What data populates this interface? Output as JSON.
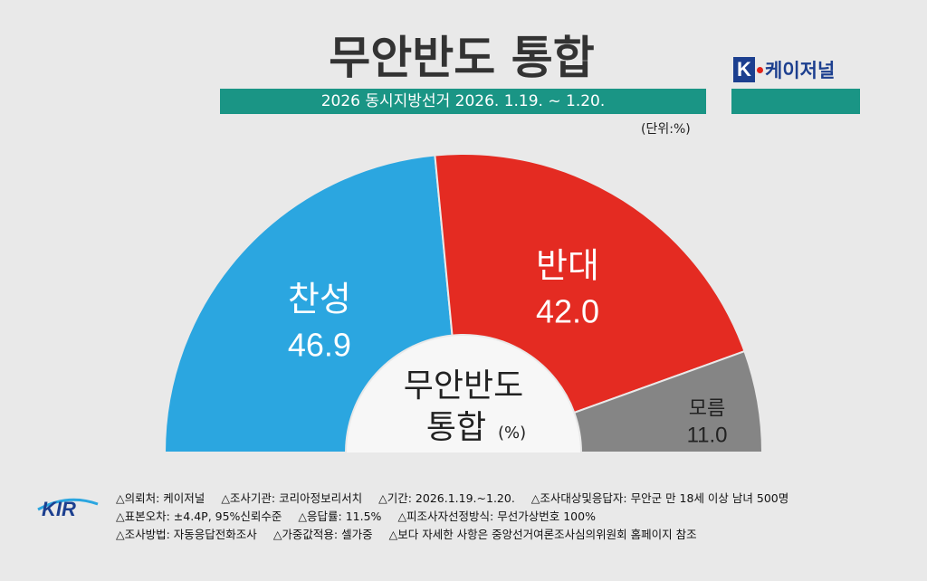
{
  "header": {
    "title": "무안반도 통합",
    "subtitle": "2026 동시지방선거 2026. 1.19. ~ 1.20.",
    "unit": "(단위:%)",
    "brand_k": "K",
    "brand_name": "케이저널",
    "colors": {
      "teal": "#1a9585",
      "brand_blue": "#1c3f8f"
    }
  },
  "chart_data": {
    "type": "pie",
    "style": "semicircle-donut",
    "center_label": [
      "무안반도",
      "통합"
    ],
    "center_unit": "(%)",
    "slices": [
      {
        "label": "찬성",
        "value": 46.9,
        "color": "#2ba6e0"
      },
      {
        "label": "반대",
        "value": 42.0,
        "color": "#e42b22"
      },
      {
        "label": "모름",
        "value": 11.0,
        "color": "#858585"
      }
    ]
  },
  "footer": {
    "logo_text": "KIR",
    "lines": [
      [
        "△의뢰처: 케이저널",
        "△조사기관: 코리아정보리서치",
        "△기간: 2026.1.19.~1.20.",
        "△조사대상및응답자: 무안군 만 18세 이상 남녀 500명"
      ],
      [
        "△표본오차: ±4.4P, 95%신뢰수준",
        "△응답률: 11.5%",
        "△피조사자선정방식: 무선가상번호 100%"
      ],
      [
        "△조사방법: 자동응답전화조사",
        "△가중값적용: 셀가중",
        "△보다 자세한 사항은 중앙선거여론조사심의위원회 홈페이지 참조"
      ]
    ]
  }
}
